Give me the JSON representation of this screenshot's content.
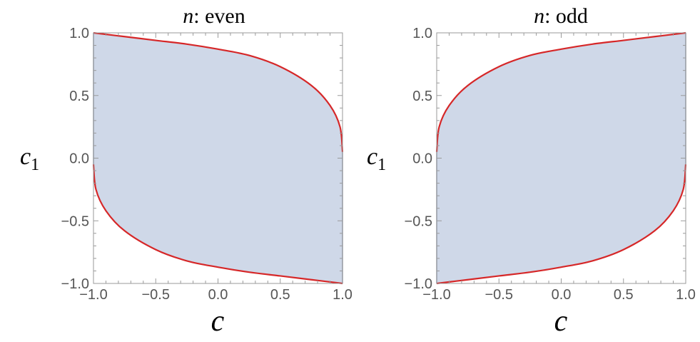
{
  "chart_data": [
    {
      "type": "area",
      "title_var": "n",
      "title_rest": ": even",
      "xlabel": "c",
      "ylabel_main": "c",
      "ylabel_sub": "1",
      "xlim": [
        -1,
        1
      ],
      "ylim": [
        -1,
        1
      ],
      "xticks": [
        "−1.0",
        "−0.5",
        "0.0",
        "0.5",
        "1.0"
      ],
      "yticks": [
        "−1.0",
        "−0.5",
        "0.0",
        "0.5",
        "1.0"
      ],
      "upper_boundary": {
        "x": [
          -1.0,
          -0.75,
          -0.5,
          -0.25,
          0.0,
          0.25,
          0.5,
          0.75,
          0.9,
          0.98,
          1.0
        ],
        "y": [
          1.0,
          0.97,
          0.94,
          0.91,
          0.87,
          0.82,
          0.73,
          0.58,
          0.42,
          0.25,
          0.05
        ]
      },
      "lower_boundary": {
        "x": [
          -1.0,
          -0.98,
          -0.9,
          -0.75,
          -0.5,
          -0.25,
          0.0,
          0.25,
          0.5,
          0.75,
          1.0
        ],
        "y": [
          -0.05,
          -0.25,
          -0.42,
          -0.58,
          -0.73,
          -0.82,
          -0.87,
          -0.91,
          -0.94,
          -0.97,
          -1.0
        ]
      },
      "fill_color": "#cfd8e8",
      "line_color": "#d62728"
    },
    {
      "type": "area",
      "title_var": "n",
      "title_rest": ": odd",
      "xlabel": "c",
      "ylabel_main": "c",
      "ylabel_sub": "1",
      "xlim": [
        -1,
        1
      ],
      "ylim": [
        -1,
        1
      ],
      "xticks": [
        "−1.0",
        "−0.5",
        "0.0",
        "0.5",
        "1.0"
      ],
      "yticks": [
        "−1.0",
        "−0.5",
        "0.0",
        "0.5",
        "1.0"
      ],
      "upper_boundary": {
        "x": [
          -1.0,
          -0.98,
          -0.9,
          -0.75,
          -0.5,
          -0.25,
          0.0,
          0.25,
          0.5,
          0.75,
          1.0
        ],
        "y": [
          0.05,
          0.25,
          0.42,
          0.58,
          0.73,
          0.82,
          0.87,
          0.91,
          0.94,
          0.97,
          1.0
        ]
      },
      "lower_boundary": {
        "x": [
          -1.0,
          -0.75,
          -0.5,
          -0.25,
          0.0,
          0.25,
          0.5,
          0.75,
          0.9,
          0.98,
          1.0
        ],
        "y": [
          -1.0,
          -0.97,
          -0.94,
          -0.91,
          -0.87,
          -0.82,
          -0.73,
          -0.58,
          -0.42,
          -0.25,
          -0.05
        ]
      },
      "fill_color": "#cfd8e8",
      "line_color": "#d62728"
    }
  ]
}
